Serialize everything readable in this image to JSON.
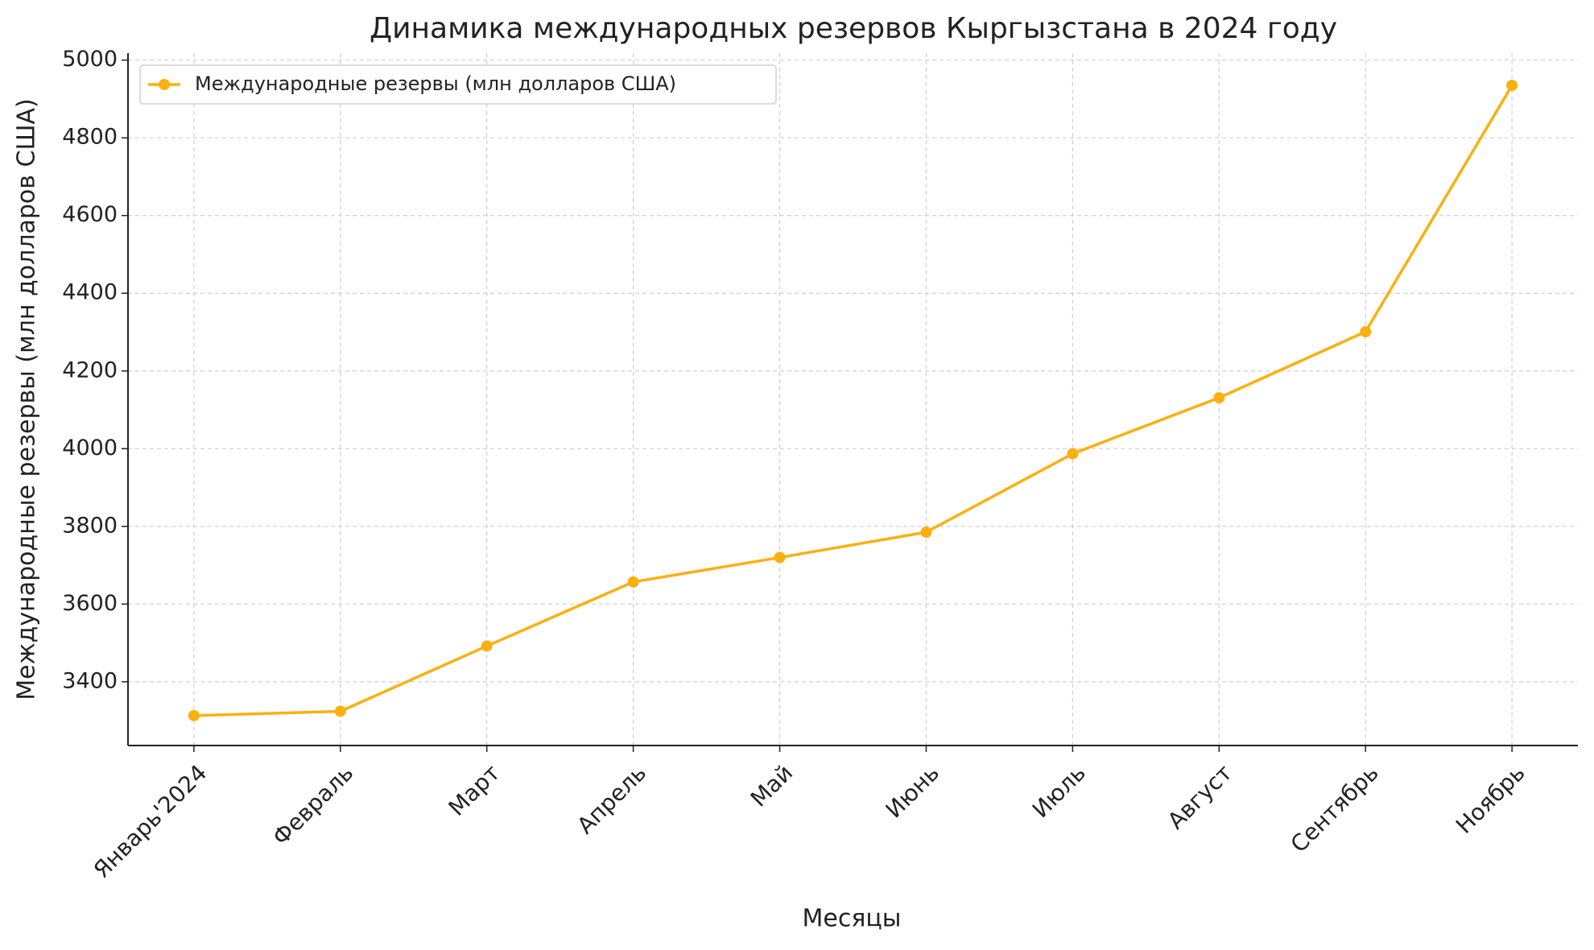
{
  "chart_data": {
    "type": "line",
    "title": "Динамика международных резервов Кыргызстана в 2024 году",
    "x_label": "Месяцы",
    "y_label": "Международные резервы (млн долларов США)",
    "categories": [
      "Январь'2024",
      "Февраль",
      "Март",
      "Апрель",
      "Май",
      "Июнь",
      "Июль",
      "Август",
      "Сентябрь",
      "Ноябрь"
    ],
    "series": [
      {
        "name": "Международные резервы (млн долларов США)",
        "color": "#fbb010",
        "values": [
          3313,
          3324,
          3492,
          3657,
          3720,
          3785,
          3987,
          4131,
          4301,
          4935
        ]
      }
    ],
    "ylim": [
      3236,
      5018
    ],
    "yticks": [
      3400,
      3600,
      3800,
      4000,
      4200,
      4400,
      4600,
      4800,
      5000
    ],
    "grid": true,
    "legend": "upper left"
  }
}
